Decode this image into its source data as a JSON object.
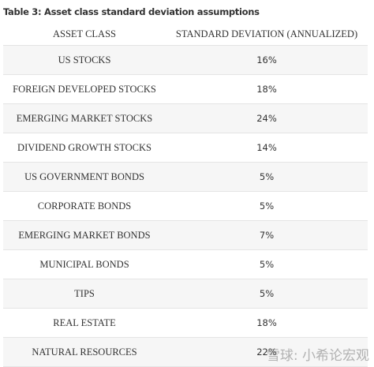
{
  "header": {
    "title": "Table 3: Asset class standard deviation assumptions"
  },
  "table": {
    "columns": [
      "ASSET CLASS",
      "STANDARD DEVIATION (ANNUALIZED)"
    ],
    "rows": [
      [
        "US STOCKS",
        "16%"
      ],
      [
        "FOREIGN DEVELOPED STOCKS",
        "18%"
      ],
      [
        "EMERGING MARKET STOCKS",
        "24%"
      ],
      [
        "DIVIDEND GROWTH STOCKS",
        "14%"
      ],
      [
        "US GOVERNMENT BONDS",
        "5%"
      ],
      [
        "CORPORATE BONDS",
        "5%"
      ],
      [
        "EMERGING MARKET BONDS",
        "7%"
      ],
      [
        "MUNICIPAL BONDS",
        "5%"
      ],
      [
        "TIPS",
        "5%"
      ],
      [
        "REAL ESTATE",
        "18%"
      ],
      [
        "NATURAL RESOURCES",
        "22%"
      ]
    ]
  },
  "watermark": "雪球: 小希论宏观"
}
